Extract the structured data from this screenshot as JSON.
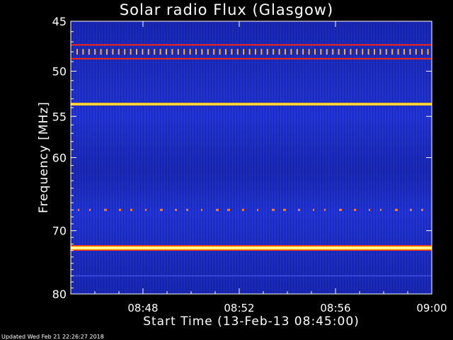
{
  "title": "Solar radio Flux (Glasgow)",
  "footer": "Updated Wed Feb 21 22:26:27 2018",
  "chart_data": {
    "type": "heatmap",
    "title": "Solar radio Flux (Glasgow)",
    "xlabel": "Start Time (13-Feb-13 08:45:00)",
    "ylabel": "Frequency [MHz]",
    "xlim": [
      "08:45",
      "09:00"
    ],
    "ylim": [
      45,
      80
    ],
    "y_scale": "log",
    "y_inverted": true,
    "x_ticks": [
      "08:48",
      "08:52",
      "08:56",
      "09:00"
    ],
    "y_ticks": [
      45,
      50,
      55,
      60,
      70,
      80
    ],
    "grid": false,
    "colormap": [
      "#0a0a6e",
      "#1f34d8",
      "#c8101a",
      "#ff3010",
      "#ffd21e",
      "#ffffb4"
    ],
    "background_level": "low",
    "bands": [
      {
        "freq_mhz": 47.3,
        "intensity": "medium",
        "note": "continuous red line"
      },
      {
        "freq_mhz": 48.0,
        "intensity": "medium-high",
        "note": "periodic yellow bursts"
      },
      {
        "freq_mhz": 48.7,
        "intensity": "medium",
        "note": "continuous red line"
      },
      {
        "freq_mhz": 53.6,
        "intensity": "high",
        "note": "continuous yellow-orange line"
      },
      {
        "freq_mhz": 67.0,
        "intensity": "low-medium",
        "note": "sporadic orange dots"
      },
      {
        "freq_mhz": 72.6,
        "intensity": "very high",
        "note": "continuous yellow-white line"
      },
      {
        "freq_mhz": 77.0,
        "intensity": "low",
        "note": "faint line"
      }
    ]
  }
}
